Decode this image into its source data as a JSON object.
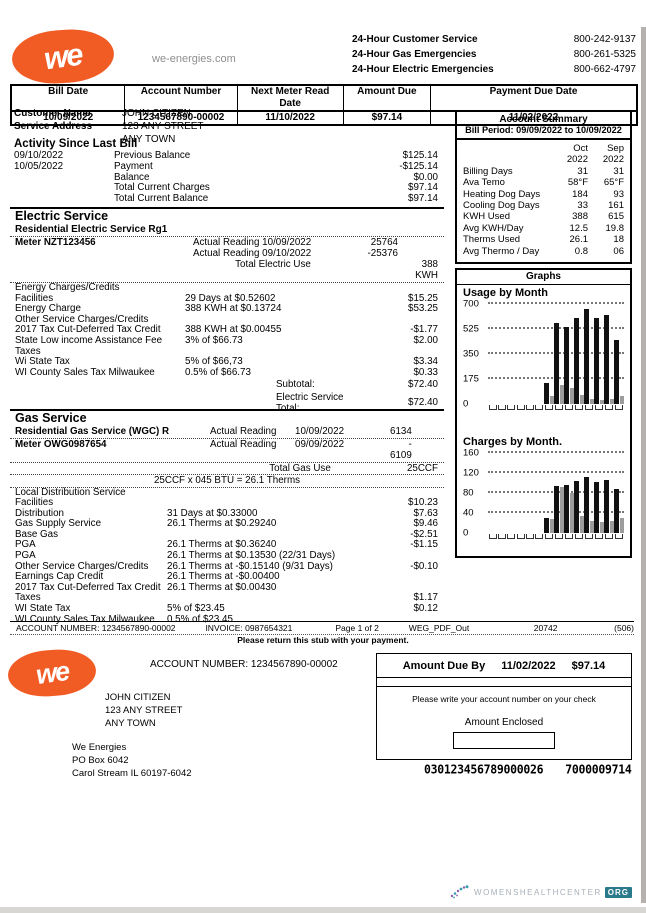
{
  "brand": {
    "logo_text": "we",
    "website": "we-energies.com"
  },
  "colors": {
    "brand_orange": "#f15b24",
    "bar_primary": "#111111",
    "bar_secondary": "#9c9c9c",
    "watermark_teal": "#2b7a8c"
  },
  "contacts": [
    {
      "label": "24-Hour Customer Service",
      "phone": "800-242-9137"
    },
    {
      "label": "24-Hour Gas Emergencies",
      "phone": "800-261-5325"
    },
    {
      "label": "24-Hour Electric Emergencies",
      "phone": "800-662-4797"
    }
  ],
  "bill_table": {
    "headers": [
      "Bill Date",
      "Account Number",
      "Next Meter Read Date",
      "Amount Due",
      "Payment Due Date"
    ],
    "values": [
      "10/09/2022",
      "1234567890-00002",
      "11/10/2022",
      "$97.14",
      "11/02/2022"
    ]
  },
  "customer": {
    "name_label": "Customer Name",
    "name": "JOHN CITIZEN",
    "address_label": "Service Address",
    "address_lines": [
      "123 ANY STREET",
      "ANY TOWN"
    ]
  },
  "activity": {
    "title": "Activity Since Last Bill",
    "rows": [
      {
        "date": "09/10/2022",
        "label": "Previous Balance",
        "amount": "$125.14"
      },
      {
        "date": "10/05/2022",
        "label": "Payment",
        "amount": "-$125.14"
      },
      {
        "date": "",
        "label": "Balance",
        "amount": "$0.00"
      },
      {
        "date": "",
        "label": "Total Current Charges",
        "amount": "$97.14"
      },
      {
        "date": "",
        "label": "Total Current Balance",
        "amount": "$97.14"
      }
    ]
  },
  "account_summary": {
    "title": "Account Summary",
    "period": "Bill Period: 09/09/2022 to 10/09/2022",
    "col_headers": [
      [
        "Oct",
        "2022"
      ],
      [
        "Sep",
        "2022"
      ]
    ],
    "rows": [
      {
        "label": "Billing Days",
        "oct": "31",
        "sep": "31"
      },
      {
        "label": "Ava Temo",
        "oct": "58°F",
        "sep": "65°F"
      },
      {
        "label": "Heating Dog Days",
        "oct": "184",
        "sep": "93"
      },
      {
        "label": "Cooling Dog Days",
        "oct": "33",
        "sep": "161"
      },
      {
        "label": "KWH Used",
        "oct": "388",
        "sep": "615"
      },
      {
        "label": "Avg KWH/Day",
        "oct": "12.5",
        "sep": "19.8"
      },
      {
        "label": "Therms Used",
        "oct": "26.1",
        "sep": "18"
      },
      {
        "label": "Avg Thermo / Day",
        "oct": "0.8",
        "sep": "06"
      }
    ]
  },
  "graphs": {
    "title": "Graphs"
  },
  "chart_data": [
    {
      "type": "bar",
      "title": "Usage by Month",
      "ylim": [
        0,
        700
      ],
      "yticks": [
        700,
        525,
        350,
        175,
        0
      ],
      "grid": "dotted",
      "series": [
        {
          "name": "usage-primary",
          "color": "#111111",
          "values": [
            0,
            0,
            0,
            0,
            0,
            0,
            145,
            565,
            540,
            600,
            665,
            605,
            625,
            445
          ]
        },
        {
          "name": "usage-secondary",
          "color": "#9c9c9c",
          "values": [
            0,
            0,
            0,
            0,
            0,
            0,
            55,
            130,
            110,
            65,
            35,
            30,
            35,
            55
          ]
        }
      ]
    },
    {
      "type": "bar",
      "title": "Charges by Month.",
      "ylim": [
        0,
        160
      ],
      "yticks": [
        160,
        120,
        80,
        40,
        0
      ],
      "grid": "dotted",
      "series": [
        {
          "name": "charges-primary",
          "color": "#111111",
          "values": [
            0,
            0,
            0,
            0,
            0,
            0,
            30,
            95,
            97,
            105,
            112,
            103,
            107,
            88
          ]
        },
        {
          "name": "charges-secondary",
          "color": "#9c9c9c",
          "values": [
            0,
            0,
            0,
            0,
            0,
            0,
            28,
            92,
            80,
            35,
            25,
            22,
            25,
            30
          ]
        }
      ]
    }
  ],
  "electric": {
    "title": "Electric Service",
    "subtitle": "Residential Electric Service Rg1",
    "meter": "Meter NZT123456",
    "readings": [
      {
        "label": "Actual Reading 10/09/2022",
        "value": "25764"
      },
      {
        "label": "Actual Reading 09/10/2022",
        "value": "-25376"
      }
    ],
    "total_label": "Total Electric Use",
    "total_value": "388 KWH",
    "charges": [
      {
        "name": "Energy Charges/Credits",
        "detail": "",
        "amount": ""
      },
      {
        "name": "Facilities",
        "detail": "29 Days at $0.52602",
        "amount": "$15.25"
      },
      {
        "name": "Energy Charge",
        "detail": "388 KWH at $0.13724",
        "amount": "$53.25"
      },
      {
        "name": "Other Service Charges/Credits",
        "detail": "",
        "amount": ""
      },
      {
        "name": "2017 Tax Cut-Deferred Tax Credit",
        "detail": "388 KWH at $0.00455",
        "amount": "-$1.77"
      },
      {
        "name": "State Low income Assistance Fee",
        "detail": "3% of $66.73",
        "amount": "$2.00"
      },
      {
        "name": "Taxes",
        "detail": "",
        "amount": ""
      },
      {
        "name": "Wi State Tax",
        "detail": "5% of $66,73",
        "amount": "$3.34"
      },
      {
        "name": "WI County Sales Tax Milwaukee",
        "detail": "0.5% of $66.73",
        "amount": "$0.33"
      }
    ],
    "subtotal_label": "Subtotal:",
    "subtotal_amount": "$72.40",
    "total2_label": "Electric Service Total:",
    "total2_amount": "$72.40"
  },
  "gas": {
    "title": "Gas Service",
    "subtitle": "Residential Gas Service (WGC) R",
    "meter": "Meter OWG0987654",
    "readings": [
      {
        "label": "Actual Reading",
        "date": "10/09/2022",
        "value": "6134"
      },
      {
        "label": "Actual Reading",
        "date": "09/09/2022",
        "value": "- 6109"
      }
    ],
    "total_label": "Total Gas Use",
    "total_value": "25CCF",
    "conversion": "25CCF x 045 BTU = 26.1 Therms",
    "charges": [
      {
        "name": "Local Distribution  Service",
        "detail": "",
        "amount": ""
      },
      {
        "name": "Facilities",
        "detail": "",
        "amount": "$10.23"
      },
      {
        "name": "Distribution",
        "detail": "31 Days at $0.33000",
        "amount": "$7.63"
      },
      {
        "name": "Gas Supply Service",
        "detail": "26.1 Therms at $0.29240",
        "amount": "$9.46"
      },
      {
        "name": "Base Gas",
        "detail": "",
        "amount": "-$2.51"
      },
      {
        "name": "PGA",
        "detail": "26.1 Therms at $0.36240",
        "amount": "-$1.15"
      },
      {
        "name": "PGA",
        "detail": "26.1 Therms at $0.13530 (22/31 Days)",
        "amount": ""
      },
      {
        "name": "Other Service Charges/Credits",
        "detail": "26.1 Therms at -$0.15140 (9/31 Days)",
        "amount": "-$0.10"
      },
      {
        "name": "Earnings Cap Credit",
        "detail": "26.1 Therms at -$0.00400",
        "amount": ""
      },
      {
        "name": "2017 Tax Cut-Deferred Tax Credit",
        "detail": "26.1 Therms at $0.00430",
        "amount": ""
      },
      {
        "name": "Taxes",
        "detail": "",
        "amount": "$1.17"
      },
      {
        "name": "WI State Tax",
        "detail": "5% of $23.45",
        "amount": "$0.12"
      },
      {
        "name": "WI County Sales Tax Milwaukee",
        "detail": "0.5% of $23.45",
        "amount": ""
      }
    ]
  },
  "footer": {
    "items": [
      "ACCOUNT NUMBER: 1234567890-00002",
      "INVOICE: 0987654321",
      "Page 1 of 2",
      "WEG_PDF_Out",
      "20742",
      "(506)"
    ]
  },
  "stub": {
    "return_note": "Please return this stub with your payment.",
    "account_line": "ACCOUNT NUMBER: 1234567890-00002",
    "recipient": [
      "JOHN CITIZEN",
      "123 ANY STREET",
      "ANY TOWN"
    ],
    "sender": [
      "We Energies",
      "PO Box 6042",
      "Carol Stream IL 60197-6042"
    ],
    "amount_due": {
      "label": "Amount Due By",
      "date": "11/02/2022",
      "amount": "$97.14"
    },
    "check_note": "Please write your account number on your check",
    "enclosed_label": "Amount Enclosed",
    "micr": [
      "030123456789000026",
      "7000009714"
    ]
  },
  "watermark": {
    "name": "WOMENSHEALTHCENTER",
    "tld": "ORG"
  }
}
